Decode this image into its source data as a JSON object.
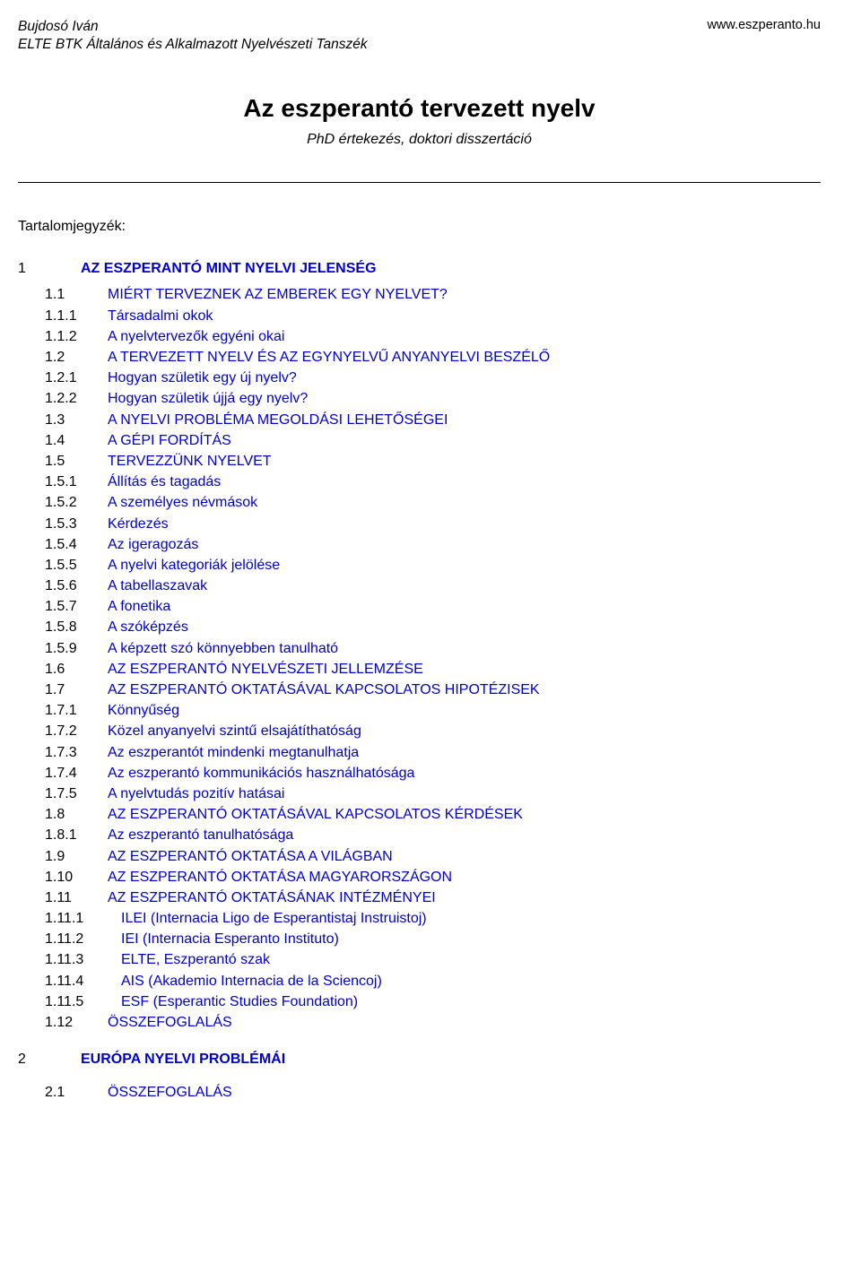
{
  "header": {
    "author": "Bujdosó Iván",
    "dept": "ELTE BTK Általános és Alkalmazott Nyelvészeti Tanszék",
    "site": "www.eszperanto.hu"
  },
  "title": "Az eszperantó tervezett nyelv",
  "subtitle": "PhD értekezés, doktori disszertáció",
  "toc_label": "Tartalomjegyzék:",
  "colors": {
    "link": "#0000cc",
    "text": "#000000",
    "bg": "#ffffff",
    "rule": "#000000"
  },
  "fonts": {
    "family": "Verdana",
    "title_size": 28,
    "body_size": 16,
    "header_size": 15.5
  },
  "toc": [
    {
      "num": "1",
      "txt": "AZ ESZPERANTÓ MINT NYELVI JELENSÉG",
      "level": 0,
      "link": true,
      "bold": true
    },
    {
      "num": "1.1",
      "txt": "MIÉRT TERVEZNEK AZ EMBEREK EGY NYELVET?",
      "level": 1,
      "link": true
    },
    {
      "num": "1.1.1",
      "txt": "Társadalmi okok",
      "level": 2,
      "link": true
    },
    {
      "num": "1.1.2",
      "txt": "A nyelvtervezők egyéni okai",
      "level": 2,
      "link": true
    },
    {
      "num": "1.2",
      "txt": "A TERVEZETT NYELV ÉS AZ EGYNYELVŰ ANYANYELVI BESZÉLŐ",
      "level": 1,
      "link": true
    },
    {
      "num": "1.2.1",
      "txt": "Hogyan születik egy új nyelv?",
      "level": 2,
      "link": true
    },
    {
      "num": "1.2.2",
      "txt": "Hogyan születik újjá egy nyelv?",
      "level": 2,
      "link": true
    },
    {
      "num": "1.3",
      "txt": "A NYELVI PROBLÉMA MEGOLDÁSI LEHETŐSÉGEI",
      "level": 1,
      "link": true
    },
    {
      "num": "1.4",
      "txt": "A GÉPI FORDÍTÁS",
      "level": 1,
      "link": true
    },
    {
      "num": "1.5",
      "txt": "TERVEZZÜNK NYELVET",
      "level": 1,
      "link": true
    },
    {
      "num": "1.5.1",
      "txt": "Állítás és tagadás",
      "level": 2,
      "link": true
    },
    {
      "num": "1.5.2",
      "txt": "A személyes névmások",
      "level": 2,
      "link": true
    },
    {
      "num": "1.5.3",
      "txt": "Kérdezés",
      "level": 2,
      "link": true
    },
    {
      "num": "1.5.4",
      "txt": "Az igeragozás",
      "level": 2,
      "link": true
    },
    {
      "num": "1.5.5",
      "txt": "A nyelvi kategoriák jelölése",
      "level": 2,
      "link": true
    },
    {
      "num": "1.5.6",
      "txt": "A tabellaszavak",
      "level": 2,
      "link": true
    },
    {
      "num": "1.5.7",
      "txt": "A fonetika",
      "level": 2,
      "link": true
    },
    {
      "num": "1.5.8",
      "txt": "A szóképzés",
      "level": 2,
      "link": true
    },
    {
      "num": "1.5.9",
      "txt": "A képzett szó könnyebben tanulható",
      "level": 2,
      "link": true
    },
    {
      "num": "1.6",
      "txt": "AZ ESZPERANTÓ NYELVÉSZETI JELLEMZÉSE",
      "level": 1,
      "link": true
    },
    {
      "num": "1.7",
      "txt": "AZ ESZPERANTÓ OKTATÁSÁVAL KAPCSOLATOS HIPOTÉZISEK",
      "level": 1,
      "link": true
    },
    {
      "num": "1.7.1",
      "txt": "Könnyűség",
      "level": 2,
      "link": true
    },
    {
      "num": "1.7.2",
      "txt": "Közel anyanyelvi szintű elsajátíthatóság",
      "level": 2,
      "link": true
    },
    {
      "num": "1.7.3",
      "txt": "Az eszperantót mindenki megtanulhatja",
      "level": 2,
      "link": true
    },
    {
      "num": "1.7.4",
      "txt": "Az eszperantó kommunikációs használhatósága",
      "level": 2,
      "link": true
    },
    {
      "num": "1.7.5",
      "txt": "A nyelvtudás pozitív hatásai",
      "level": 2,
      "link": true
    },
    {
      "num": "1.8",
      "txt": "AZ ESZPERANTÓ OKTATÁSÁVAL KAPCSOLATOS KÉRDÉSEK",
      "level": 1,
      "link": true
    },
    {
      "num": "1.8.1",
      "txt": "Az eszperantó tanulhatósága",
      "level": 2,
      "link": true
    },
    {
      "num": "1.9",
      "txt": "AZ ESZPERANTÓ OKTATÁSA A VILÁGBAN",
      "level": 1,
      "link": true
    },
    {
      "num": "1.10",
      "txt": "AZ ESZPERANTÓ OKTATÁSA MAGYARORSZÁGON",
      "level": 1,
      "link": true
    },
    {
      "num": "1.11",
      "txt": "AZ ESZPERANTÓ OKTATÁSÁNAK INTÉZMÉNYEI",
      "level": 1,
      "link": true
    },
    {
      "num": "1.11.1",
      "txt": "ILEI (Internacia Ligo de Esperantistaj Instruistoj)",
      "level": 2,
      "link": true,
      "wide": true
    },
    {
      "num": "1.11.2",
      "txt": "IEI (Internacia Esperanto Instituto)",
      "level": 2,
      "link": true,
      "wide": true
    },
    {
      "num": "1.11.3",
      "txt": "ELTE, Eszperantó szak",
      "level": 2,
      "link": true,
      "wide": true
    },
    {
      "num": "1.11.4",
      "txt": "AIS (Akademio Internacia de la Sciencoj)",
      "level": 2,
      "link": true,
      "wide": true
    },
    {
      "num": "1.11.5",
      "txt": "ESF (Esperantic Studies Foundation)",
      "level": 2,
      "link": true,
      "wide": true
    },
    {
      "num": "1.12",
      "txt": "ÖSSZEFOGLALÁS",
      "level": 1,
      "link": true
    },
    {
      "num": "2",
      "txt": "EURÓPA NYELVI PROBLÉMÁI",
      "level": 0,
      "link": true,
      "bold": true,
      "gap": true
    },
    {
      "num": "2.1",
      "txt": "ÖSSZEFOGLALÁS",
      "level": 1,
      "link": true,
      "gapSmall": true
    }
  ]
}
